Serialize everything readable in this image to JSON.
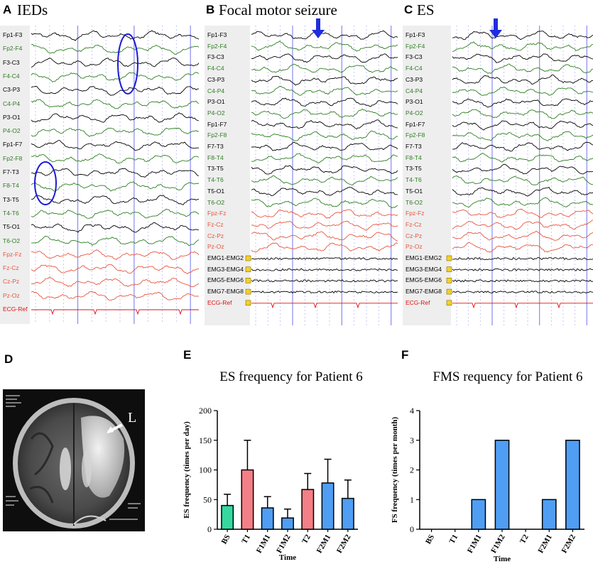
{
  "panels": {
    "A": {
      "letter": "A",
      "title": "IEDs"
    },
    "B": {
      "letter": "B",
      "title": "Focal motor seizure"
    },
    "C": {
      "letter": "C",
      "title": "ES"
    },
    "D": {
      "letter": "D",
      "mri_marker": "L"
    },
    "E": {
      "letter": "E"
    },
    "F": {
      "letter": "F"
    }
  },
  "eeg": {
    "A": {
      "channels": [
        {
          "label": "Fp1-F3",
          "color": "#000000"
        },
        {
          "label": "Fp2-F4",
          "color": "#2e7d22"
        },
        {
          "label": "F3-C3",
          "color": "#000000"
        },
        {
          "label": "F4-C4",
          "color": "#2e7d22"
        },
        {
          "label": "C3-P3",
          "color": "#000000"
        },
        {
          "label": "C4-P4",
          "color": "#2e7d22"
        },
        {
          "label": "P3-O1",
          "color": "#000000"
        },
        {
          "label": "P4-O2",
          "color": "#2e7d22"
        },
        {
          "label": "Fp1-F7",
          "color": "#000000"
        },
        {
          "label": "Fp2-F8",
          "color": "#2e7d22"
        },
        {
          "label": "F7-T3",
          "color": "#000000"
        },
        {
          "label": "F8-T4",
          "color": "#2e7d22"
        },
        {
          "label": "T3-T5",
          "color": "#000000"
        },
        {
          "label": "T4-T6",
          "color": "#2e7d22"
        },
        {
          "label": "T5-O1",
          "color": "#000000"
        },
        {
          "label": "T6-O2",
          "color": "#2e7d22"
        },
        {
          "label": "Fpz-Fz",
          "color": "#e8553c"
        },
        {
          "label": "Fz-Cz",
          "color": "#e8553c"
        },
        {
          "label": "Cz-Pz",
          "color": "#e8553c"
        },
        {
          "label": "Pz-Oz",
          "color": "#e8553c"
        },
        {
          "label": "ECG-Ref",
          "color": "#e01010"
        }
      ]
    },
    "B": {
      "channels": [
        {
          "label": "Fp1-F3",
          "color": "#000000"
        },
        {
          "label": "Fp2-F4",
          "color": "#2e7d22"
        },
        {
          "label": "F3-C3",
          "color": "#000000"
        },
        {
          "label": "F4-C4",
          "color": "#2e7d22"
        },
        {
          "label": "C3-P3",
          "color": "#000000"
        },
        {
          "label": "C4-P4",
          "color": "#2e7d22"
        },
        {
          "label": "P3-O1",
          "color": "#000000"
        },
        {
          "label": "P4-O2",
          "color": "#2e7d22"
        },
        {
          "label": "Fp1-F7",
          "color": "#000000"
        },
        {
          "label": "Fp2-F8",
          "color": "#2e7d22"
        },
        {
          "label": "F7-T3",
          "color": "#000000"
        },
        {
          "label": "F8-T4",
          "color": "#2e7d22"
        },
        {
          "label": "T3-T5",
          "color": "#000000"
        },
        {
          "label": "T4-T6",
          "color": "#2e7d22"
        },
        {
          "label": "T5-O1",
          "color": "#000000"
        },
        {
          "label": "T6-O2",
          "color": "#2e7d22"
        },
        {
          "label": "Fpz-Fz",
          "color": "#e8553c"
        },
        {
          "label": "Fz-Cz",
          "color": "#e8553c"
        },
        {
          "label": "Cz-Pz",
          "color": "#e8553c"
        },
        {
          "label": "Pz-Oz",
          "color": "#e8553c"
        },
        {
          "label": "EMG1-EMG2",
          "color": "#000000"
        },
        {
          "label": "EMG3-EMG4",
          "color": "#000000"
        },
        {
          "label": "EMG5-EMG6",
          "color": "#000000"
        },
        {
          "label": "EMG7-EMG8",
          "color": "#000000"
        },
        {
          "label": "ECG-Ref",
          "color": "#e01010"
        }
      ]
    },
    "C": {
      "channels": [
        {
          "label": "Fp1-F3",
          "color": "#000000"
        },
        {
          "label": "Fp2-F4",
          "color": "#2e7d22"
        },
        {
          "label": "F3-C3",
          "color": "#000000"
        },
        {
          "label": "F4-C4",
          "color": "#2e7d22"
        },
        {
          "label": "C3-P3",
          "color": "#000000"
        },
        {
          "label": "C4-P4",
          "color": "#2e7d22"
        },
        {
          "label": "P3-O1",
          "color": "#000000"
        },
        {
          "label": "P4-O2",
          "color": "#2e7d22"
        },
        {
          "label": "Fp1-F7",
          "color": "#000000"
        },
        {
          "label": "Fp2-F8",
          "color": "#2e7d22"
        },
        {
          "label": "F7-T3",
          "color": "#000000"
        },
        {
          "label": "F8-T4",
          "color": "#2e7d22"
        },
        {
          "label": "T3-T5",
          "color": "#000000"
        },
        {
          "label": "T4-T6",
          "color": "#2e7d22"
        },
        {
          "label": "T5-O1",
          "color": "#000000"
        },
        {
          "label": "T6-O2",
          "color": "#2e7d22"
        },
        {
          "label": "Fpz-Fz",
          "color": "#e8553c"
        },
        {
          "label": "Fz-Cz",
          "color": "#e8553c"
        },
        {
          "label": "Cz-Pz",
          "color": "#e8553c"
        },
        {
          "label": "Pz-Oz",
          "color": "#e8553c"
        },
        {
          "label": "EMG1-EMG2",
          "color": "#000000"
        },
        {
          "label": "EMG3-EMG4",
          "color": "#000000"
        },
        {
          "label": "EMG5-EMG6",
          "color": "#000000"
        },
        {
          "label": "EMG7-EMG8",
          "color": "#000000"
        },
        {
          "label": "ECG-Ref",
          "color": "#e01010"
        }
      ]
    }
  },
  "chart_data": [
    {
      "id": "E",
      "type": "bar",
      "title": "ES frequency for Patient 6",
      "xlabel": "Time",
      "ylabel": "ES frequency (times per day)",
      "ylim": [
        0,
        200
      ],
      "yticks": [
        "0",
        "50",
        "100",
        "150",
        "200"
      ],
      "categories": [
        "BS",
        "T1",
        "F1M1",
        "F1M2",
        "T2",
        "F2M1",
        "F2M2"
      ],
      "values": [
        40,
        100,
        36,
        19,
        67,
        78,
        52
      ],
      "errors": [
        19,
        50,
        19,
        15,
        27,
        40,
        31
      ],
      "colors": [
        "#35d9a0",
        "#f47f86",
        "#4f9ef3",
        "#4f9ef3",
        "#f47f86",
        "#4f9ef3",
        "#4f9ef3"
      ]
    },
    {
      "id": "F",
      "type": "bar",
      "title": "FMS requency for Patient 6",
      "xlabel": "Time",
      "ylabel": "FS frequency (times per month)",
      "ylim": [
        0,
        4
      ],
      "yticks": [
        "0",
        "1",
        "2",
        "3",
        "4"
      ],
      "categories": [
        "BS",
        "T1",
        "F1M1",
        "F1M2",
        "T2",
        "F2M1",
        "F2M2"
      ],
      "values": [
        0,
        0,
        1,
        3,
        0,
        1,
        3
      ],
      "colors": [
        "#4f9ef3",
        "#4f9ef3",
        "#4f9ef3",
        "#4f9ef3",
        "#4f9ef3",
        "#4f9ef3",
        "#4f9ef3"
      ]
    }
  ]
}
